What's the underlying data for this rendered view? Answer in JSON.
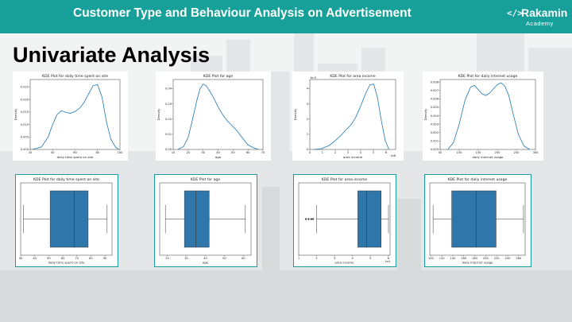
{
  "header": {
    "title": "Customer Type and Behaviour Analysis on Advertisement"
  },
  "logo": {
    "mark": "</>",
    "name": "Rakamin",
    "subtitle": "Academy"
  },
  "section_title": "Univariate Analysis",
  "colors": {
    "header_bg": "#17a09a",
    "line": "#1f77b4",
    "box_fill": "#2f77ab",
    "frame": "#1a9e9b"
  },
  "chart_data": [
    {
      "type": "line",
      "title": "KDE Plot for daily time spent on site",
      "xlabel": "daily time spent on site",
      "ylabel": "Density",
      "xlim": [
        20,
        100
      ],
      "ylim": [
        0,
        0.028
      ],
      "xticks": [
        "20",
        "40",
        "60",
        "80",
        "100"
      ],
      "yticks": [
        "0.000",
        "0.005",
        "0.010",
        "0.015",
        "0.020",
        "0.025"
      ],
      "offset": "",
      "x": [
        22,
        30,
        36,
        40,
        44,
        48,
        52,
        56,
        60,
        64,
        68,
        72,
        76,
        80,
        84,
        88,
        92,
        96,
        99
      ],
      "y": [
        0,
        0.001,
        0.005,
        0.01,
        0.014,
        0.0155,
        0.0148,
        0.0145,
        0.0152,
        0.0165,
        0.0188,
        0.0222,
        0.0255,
        0.026,
        0.021,
        0.011,
        0.004,
        0.001,
        0
      ]
    },
    {
      "type": "line",
      "title": "KDE Plot for age",
      "xlabel": "age",
      "ylabel": "Density",
      "xlim": [
        10,
        70
      ],
      "ylim": [
        0,
        0.046
      ],
      "xticks": [
        "10",
        "20",
        "30",
        "40",
        "50",
        "60",
        "70"
      ],
      "yticks": [
        "0.00",
        "0.01",
        "0.02",
        "0.03",
        "0.04"
      ],
      "offset": "",
      "x": [
        13,
        17,
        20,
        23,
        26,
        28,
        30,
        32,
        34,
        37,
        40,
        43,
        46,
        49,
        52,
        56,
        60,
        64,
        67
      ],
      "y": [
        0,
        0.002,
        0.008,
        0.02,
        0.033,
        0.04,
        0.043,
        0.042,
        0.039,
        0.034,
        0.028,
        0.023,
        0.019,
        0.016,
        0.013,
        0.008,
        0.003,
        0.001,
        0
      ]
    },
    {
      "type": "line",
      "title": "KDE Plot for area income",
      "xlabel": "area income",
      "ylabel": "Density",
      "xlim": [
        0,
        9
      ],
      "ylim": [
        0,
        4.6
      ],
      "xticks": [
        "0",
        "1",
        "2",
        "3",
        "4",
        "5",
        "6"
      ],
      "xtick_values": [
        0,
        1.33,
        2.67,
        4,
        5.33,
        6.67,
        8
      ],
      "yticks": [
        "0",
        "1",
        "2",
        "3",
        "4"
      ],
      "offset": "1e-5",
      "xoffset": "1e8",
      "x": [
        0.4,
        1.2,
        2,
        2.7,
        3.3,
        3.8,
        4.3,
        4.8,
        5.3,
        5.8,
        6.3,
        6.7,
        7.1,
        7.5,
        7.9,
        8.3
      ],
      "y": [
        0,
        0.05,
        0.25,
        0.6,
        0.95,
        1.3,
        1.6,
        2.1,
        2.8,
        3.6,
        4.25,
        4.3,
        3.4,
        1.9,
        0.6,
        0
      ]
    },
    {
      "type": "line",
      "title": "KDE Plot for daily internet usage",
      "xlabel": "daily internet usage",
      "ylabel": "Density",
      "xlim": [
        50,
        300
      ],
      "ylim": [
        0,
        0.0083
      ],
      "xticks": [
        "50",
        "100",
        "150",
        "200",
        "250",
        "300"
      ],
      "yticks": [
        "0.000",
        "0.001",
        "0.002",
        "0.003",
        "0.004",
        "0.005",
        "0.006",
        "0.007",
        "0.008"
      ],
      "offset": "",
      "x": [
        70,
        85,
        100,
        115,
        130,
        140,
        150,
        160,
        170,
        180,
        190,
        200,
        210,
        220,
        230,
        240,
        255,
        270,
        285
      ],
      "y": [
        0,
        0.0008,
        0.003,
        0.0058,
        0.0074,
        0.0076,
        0.0071,
        0.0066,
        0.0064,
        0.0067,
        0.0072,
        0.0077,
        0.0079,
        0.0075,
        0.0064,
        0.0045,
        0.0018,
        0.0004,
        0
      ]
    },
    {
      "type": "box",
      "title": "KDE Plot for daily time spent on site",
      "xlabel": "daily time spent on site",
      "xlim": [
        30,
        95
      ],
      "xticks": [
        30,
        40,
        50,
        60,
        70,
        80,
        90
      ],
      "min": 32,
      "q1": 51,
      "median": 68,
      "q3": 78,
      "max": 91.5,
      "outliers": []
    },
    {
      "type": "box",
      "title": "KDE Plot for age",
      "xlabel": "age",
      "xlim": [
        16,
        64
      ],
      "xticks": [
        20,
        30,
        40,
        50,
        60
      ],
      "min": 19,
      "q1": 29,
      "median": 35,
      "q3": 42,
      "max": 61,
      "outliers": []
    },
    {
      "type": "box",
      "title": "KDE Plot for area income",
      "xlabel": "area income",
      "offset": "1e4",
      "xlim": [
        1,
        6.1
      ],
      "xticks": [
        1,
        2,
        3,
        4,
        5,
        6
      ],
      "min": 2.0,
      "q1": 4.3,
      "median": 4.8,
      "q3": 5.6,
      "max": 7.9,
      "outliers": [
        1.4,
        1.55,
        1.7,
        1.8
      ]
    },
    {
      "type": "box",
      "title": "KDE Plot for daily internet usage",
      "xlabel": "daily internet usage",
      "xlim": [
        98,
        272
      ],
      "xticks": [
        100,
        120,
        140,
        160,
        180,
        200,
        220,
        240,
        260
      ],
      "min": 104,
      "q1": 138,
      "median": 183,
      "q3": 219,
      "max": 269,
      "outliers": []
    }
  ]
}
